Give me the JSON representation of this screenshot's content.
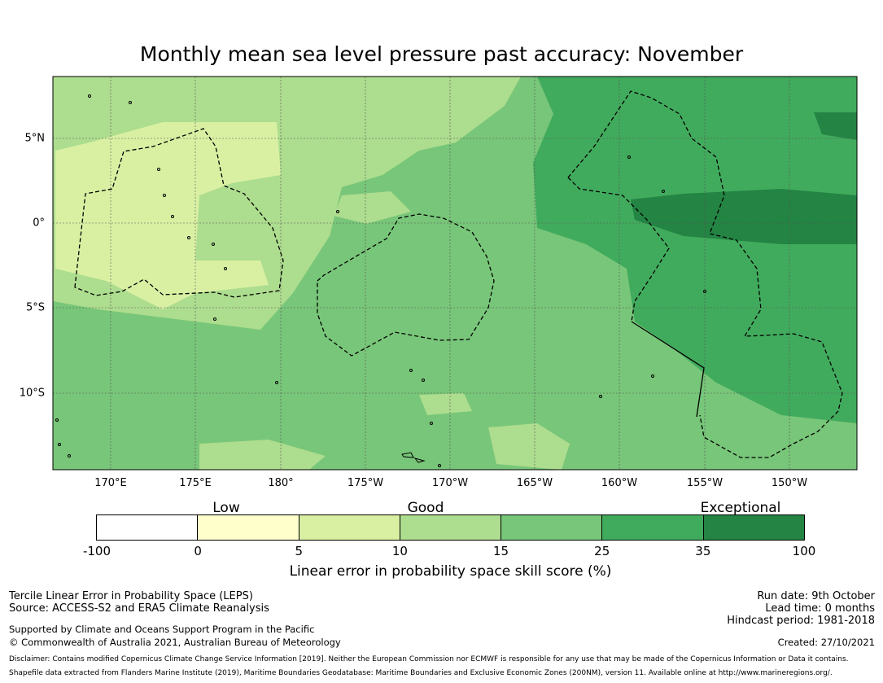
{
  "title": "Monthly mean sea level pressure past accuracy: November",
  "map": {
    "lon_ticks": [
      "170°E",
      "175°E",
      "180°",
      "175°W",
      "170°W",
      "165°W",
      "160°W",
      "155°W",
      "150°W"
    ],
    "lat_ticks": [
      "5°N",
      "0°",
      "5°S",
      "10°S"
    ],
    "colors": {
      "low": "#ffffcc",
      "c5": "#d9f0a3",
      "c10": "#addd8e",
      "c15": "#78c679",
      "c25": "#41ab5d",
      "c35": "#238443",
      "boundary": "#000000"
    }
  },
  "legend": {
    "categories": [
      "Low",
      "Good",
      "Exceptional"
    ],
    "ticks": [
      "-100",
      "0",
      "5",
      "10",
      "15",
      "25",
      "35",
      "100"
    ],
    "colors": [
      "#ffffff",
      "#ffffcc",
      "#d9f0a3",
      "#addd8e",
      "#78c679",
      "#41ab5d",
      "#238443"
    ],
    "label": "Linear error in probability space skill score (%)"
  },
  "footer": {
    "left": {
      "line1": "Tercile Linear Error in Probability Space (LEPS)",
      "line2": "Source: ACCESS-S2 and ERA5 Climate Reanalysis",
      "line3": "Supported by Climate and Oceans Support Program in the Pacific",
      "line4": "© Commonwealth of Australia 2021, Australian Bureau of Meteorology"
    },
    "right": {
      "run_date": "Run date: 9th October",
      "lead_time": "Lead time: 0 months",
      "hindcast": "Hindcast period: 1981-2018",
      "created": "Created: 27/10/2021"
    },
    "disclaimer": "Disclaimer: Contains modified Copernicus Climate Change Service Information [2019]. Neither the European Commission nor ECMWF is responsible for any use that may be made of the Copernicus Information or Data it contains.",
    "shapefile": "Shapefile data extracted from Flanders Marine Institute (2019), Maritime Boundaries Geodatabase: Maritime Boundaries and Exclusive Economic Zones (200NM), version 11. Available online at http://www.marineregions.org/."
  }
}
